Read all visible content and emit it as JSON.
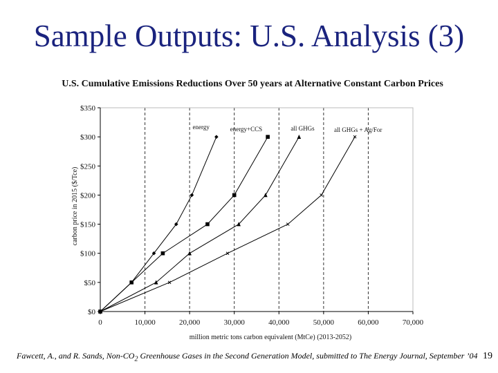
{
  "slide": {
    "title": "Sample Outputs: U.S. Analysis (3)",
    "page_number": "19"
  },
  "footer": {
    "citation_pre": "Fawcett, A., and R. Sands, Non-CO",
    "citation_sub": "2",
    "citation_post": " Greenhouse Gases in the Second Generation Model, submitted to The Energy Journal, September ’04"
  },
  "chart_data": {
    "type": "line",
    "title": "U.S. Cumulative Emissions Reductions Over 50 years at Alternative Constant Carbon Prices",
    "xlabel": "million metric tons carbon equivalent (MtCe) (2013-2052)",
    "ylabel": "carbon price in 2015 ($/Tce)",
    "xlim": [
      0,
      70000
    ],
    "ylim": [
      0,
      350
    ],
    "x_ticks": [
      0,
      10000,
      20000,
      30000,
      40000,
      50000,
      60000,
      70000
    ],
    "x_tick_labels": [
      "0",
      "10,000",
      "20,000",
      "30,000",
      "40,000",
      "50,000",
      "60,000",
      "70,000"
    ],
    "y_ticks": [
      0,
      50,
      100,
      150,
      200,
      250,
      300,
      350
    ],
    "y_tick_labels": [
      "$0",
      "$50",
      "$100",
      "$150",
      "$200",
      "$250",
      "$300",
      "$350"
    ],
    "grid": "vertical-dashed",
    "series": [
      {
        "name": "energy",
        "marker": "diamond",
        "points": [
          [
            0,
            0
          ],
          [
            7000,
            50
          ],
          [
            12000,
            100
          ],
          [
            17000,
            150
          ],
          [
            20500,
            200
          ],
          [
            26000,
            300
          ]
        ]
      },
      {
        "name": "energy+CCS",
        "marker": "square",
        "points": [
          [
            0,
            0
          ],
          [
            7000,
            50
          ],
          [
            14000,
            100
          ],
          [
            24000,
            150
          ],
          [
            30000,
            200
          ],
          [
            37500,
            300
          ]
        ]
      },
      {
        "name": "all GHGs",
        "marker": "triangle",
        "points": [
          [
            0,
            0
          ],
          [
            12500,
            50
          ],
          [
            20000,
            100
          ],
          [
            31000,
            150
          ],
          [
            37000,
            200
          ],
          [
            44500,
            300
          ]
        ]
      },
      {
        "name": "all GHGs + Ag/For",
        "marker": "x",
        "points": [
          [
            0,
            0
          ],
          [
            15500,
            50
          ],
          [
            28500,
            100
          ],
          [
            42000,
            150
          ],
          [
            49500,
            200
          ],
          [
            57000,
            300
          ]
        ]
      }
    ]
  }
}
